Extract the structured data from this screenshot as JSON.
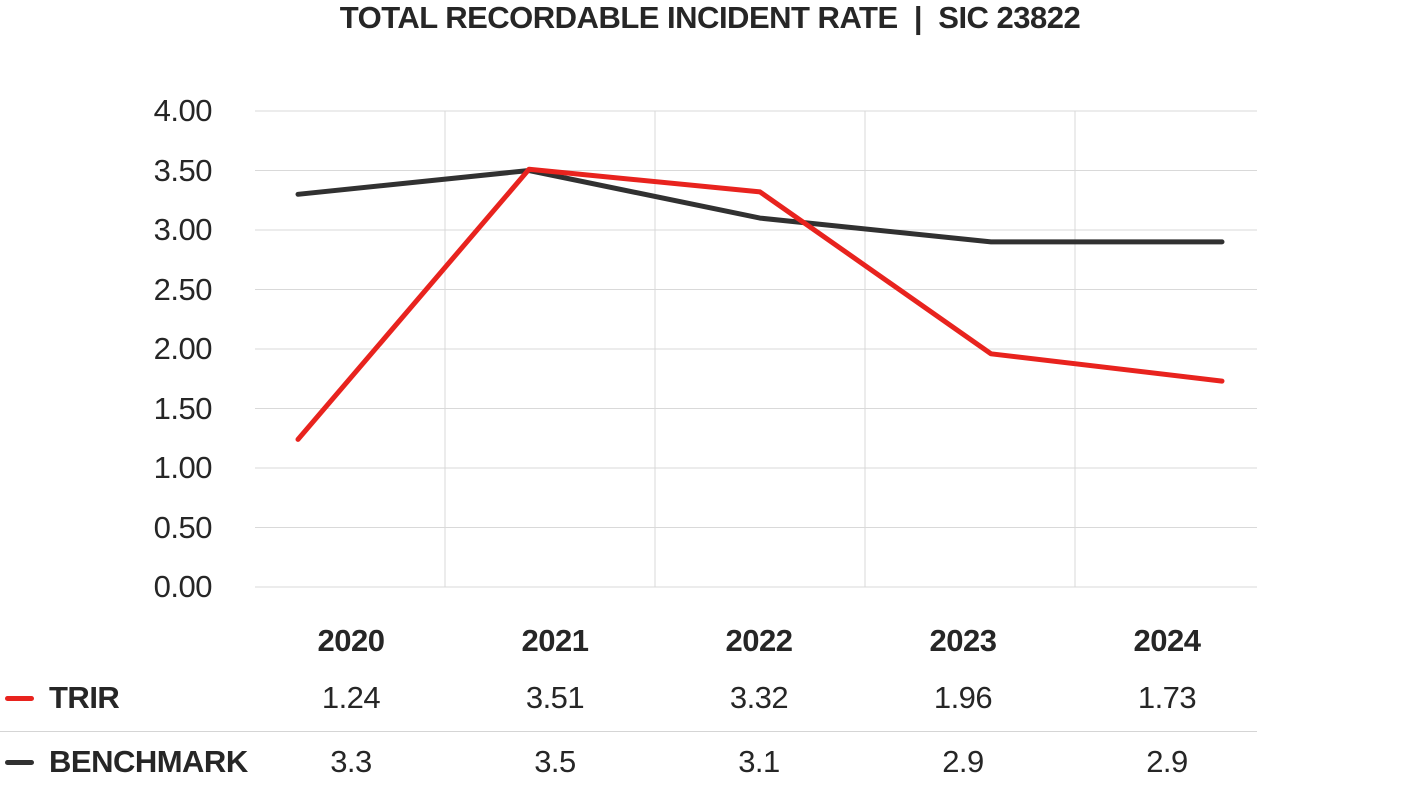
{
  "title": "TOTAL RECORDABLE INCIDENT RATE  |  SIC 23822",
  "chart_data": {
    "type": "line",
    "title": "TOTAL RECORDABLE INCIDENT RATE | SIC 23822",
    "categories": [
      "2020",
      "2021",
      "2022",
      "2023",
      "2024"
    ],
    "series": [
      {
        "name": "TRIR",
        "color": "#e8231e",
        "values": [
          1.24,
          3.51,
          3.32,
          1.96,
          1.73
        ],
        "labels": [
          "1.24",
          "3.51",
          "3.32",
          "1.96",
          "1.73"
        ]
      },
      {
        "name": "BENCHMARK",
        "color": "#313131",
        "values": [
          3.3,
          3.5,
          3.1,
          2.9,
          2.9
        ],
        "labels": [
          "3.3",
          "3.5",
          "3.1",
          "2.9",
          "2.9"
        ]
      }
    ],
    "ylim": [
      0,
      4
    ],
    "y_tick_step": 0.5,
    "y_ticks": [
      "4.00",
      "3.50",
      "3.00",
      "2.50",
      "2.00",
      "1.50",
      "1.00",
      "0.50",
      "0.00"
    ],
    "grid": {
      "horizontal": true,
      "vertical": true
    },
    "legend_position": "bottom-left"
  },
  "colors": {
    "trir_red": "#e8231e",
    "benchmark_dark": "#313131",
    "gridline": "#d9d9d9",
    "divider": "#d5d5d5",
    "text": "#262626",
    "background": "#ffffff"
  }
}
